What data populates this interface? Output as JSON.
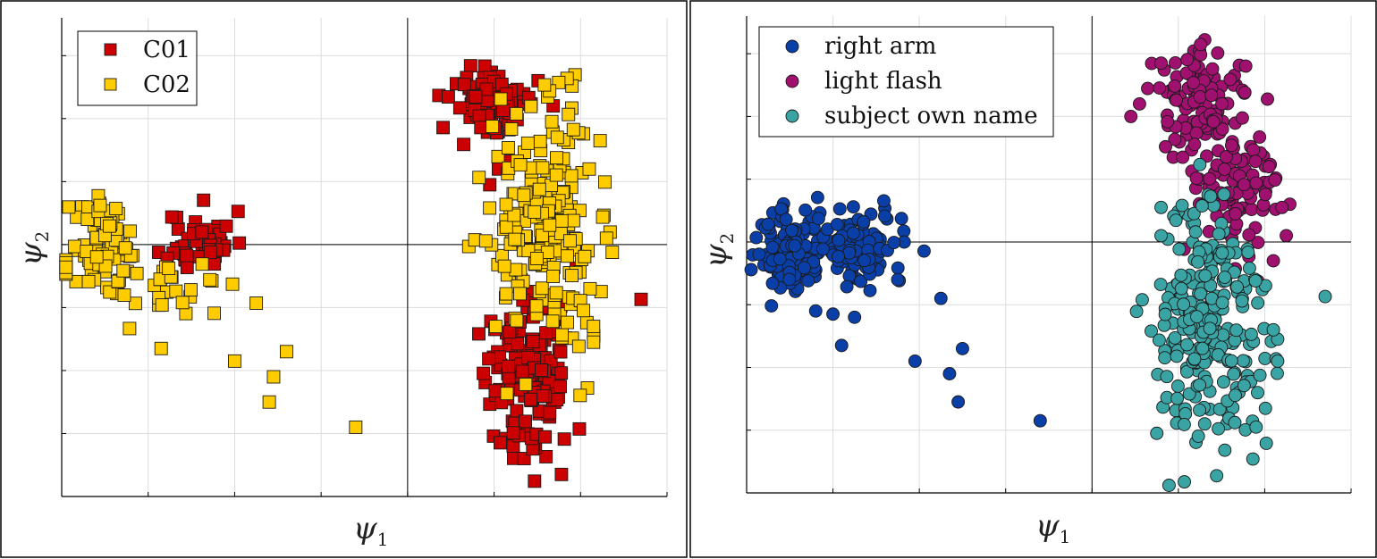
{
  "chart_data": [
    {
      "type": "scatter",
      "marker": "square",
      "xlabel": "ψ",
      "xlabel_sub": "1",
      "ylabel": "ψ",
      "ylabel_sub": "2",
      "xlim": [
        -4,
        3
      ],
      "ylim": [
        -4,
        3.6
      ],
      "grid": true,
      "legend_position": "top-left",
      "series": [
        {
          "name": "C01",
          "color": "#cc0000",
          "clusters": [
            {
              "n": 55,
              "cx": -2.4,
              "cy": 0.05,
              "sx": 0.19,
              "sy": 0.24,
              "seed": 11
            },
            {
              "n": 85,
              "cx": 1.0,
              "cy": 2.25,
              "sx": 0.24,
              "sy": 0.3,
              "seed": 12
            },
            {
              "n": 150,
              "cx": 1.4,
              "cy": -2.1,
              "sx": 0.25,
              "sy": 0.65,
              "seed": 13
            }
          ],
          "points": [
            [
              2.7,
              -0.87
            ],
            [
              0.95,
              0.95
            ],
            [
              1.05,
              1.2
            ],
            [
              1.6,
              -1.4
            ]
          ]
        },
        {
          "name": "C02",
          "color": "#ffcc00",
          "clusters": [
            {
              "n": 85,
              "cx": -3.5,
              "cy": -0.1,
              "sx": 0.2,
              "sy": 0.4,
              "seed": 21
            },
            {
              "n": 210,
              "cx": 1.6,
              "cy": 0.3,
              "sx": 0.3,
              "sy": 0.95,
              "seed": 22
            },
            {
              "n": 25,
              "cx": -2.6,
              "cy": -0.75,
              "sx": 0.25,
              "sy": 0.2,
              "seed": 23
            }
          ],
          "points": [
            [
              -2.85,
              -1.65
            ],
            [
              -2.0,
              -1.85
            ],
            [
              -1.75,
              -0.93
            ],
            [
              -1.55,
              -2.1
            ],
            [
              -1.6,
              -2.5
            ],
            [
              -1.4,
              -1.7
            ],
            [
              -0.6,
              -2.9
            ],
            [
              2.15,
              -1.3
            ],
            [
              2.15,
              -1.55
            ],
            [
              2.1,
              1.2
            ],
            [
              2.3,
              0.1
            ]
          ]
        }
      ]
    },
    {
      "type": "scatter",
      "marker": "circle",
      "xlabel": "ψ",
      "xlabel_sub": "1",
      "ylabel": "ψ",
      "ylabel_sub": "2",
      "xlim": [
        -4,
        3
      ],
      "ylim": [
        -4,
        3.6
      ],
      "grid": true,
      "legend_position": "top-left",
      "series": [
        {
          "name": "right arm",
          "color": "#0b3fa8",
          "clusters": [
            {
              "n": 130,
              "cx": -3.5,
              "cy": -0.15,
              "sx": 0.2,
              "sy": 0.35,
              "seed": 31
            },
            {
              "n": 95,
              "cx": -2.7,
              "cy": -0.05,
              "sx": 0.28,
              "sy": 0.3,
              "seed": 32
            }
          ],
          "points": [
            [
              -3.0,
              -1.15
            ],
            [
              -2.75,
              -1.2
            ],
            [
              -2.9,
              -1.65
            ],
            [
              -2.05,
              -1.9
            ],
            [
              -1.75,
              -0.9
            ],
            [
              -1.5,
              -1.7
            ],
            [
              -1.65,
              -2.1
            ],
            [
              -1.55,
              -2.55
            ],
            [
              -0.6,
              -2.85
            ],
            [
              -3.2,
              -1.1
            ],
            [
              -2.25,
              -0.6
            ]
          ]
        },
        {
          "name": "light flash",
          "color": "#a0106e",
          "clusters": [
            {
              "n": 105,
              "cx": 1.3,
              "cy": 2.3,
              "sx": 0.28,
              "sy": 0.38,
              "seed": 41
            },
            {
              "n": 100,
              "cx": 1.6,
              "cy": 0.85,
              "sx": 0.28,
              "sy": 0.55,
              "seed": 42
            }
          ],
          "points": [
            [
              0.45,
              2.0
            ],
            [
              0.55,
              2.2
            ],
            [
              0.8,
              2.85
            ],
            [
              2.05,
              1.2
            ],
            [
              2.2,
              0.55
            ],
            [
              2.25,
              0.1
            ],
            [
              2.1,
              -0.3
            ],
            [
              1.05,
              1.35
            ]
          ]
        },
        {
          "name": "subject own name",
          "color": "#3aa3a3",
          "clusters": [
            {
              "n": 250,
              "cx": 1.35,
              "cy": -1.4,
              "sx": 0.33,
              "sy": 1.0,
              "seed": 51
            }
          ],
          "points": [
            [
              2.7,
              -0.87
            ],
            [
              2.15,
              -1.55
            ],
            [
              2.15,
              -1.9
            ],
            [
              2.1,
              -1.4
            ],
            [
              0.8,
              0.55
            ],
            [
              0.8,
              0.1
            ],
            [
              1.9,
              -2.95
            ],
            [
              0.75,
              -3.05
            ]
          ]
        }
      ]
    }
  ]
}
